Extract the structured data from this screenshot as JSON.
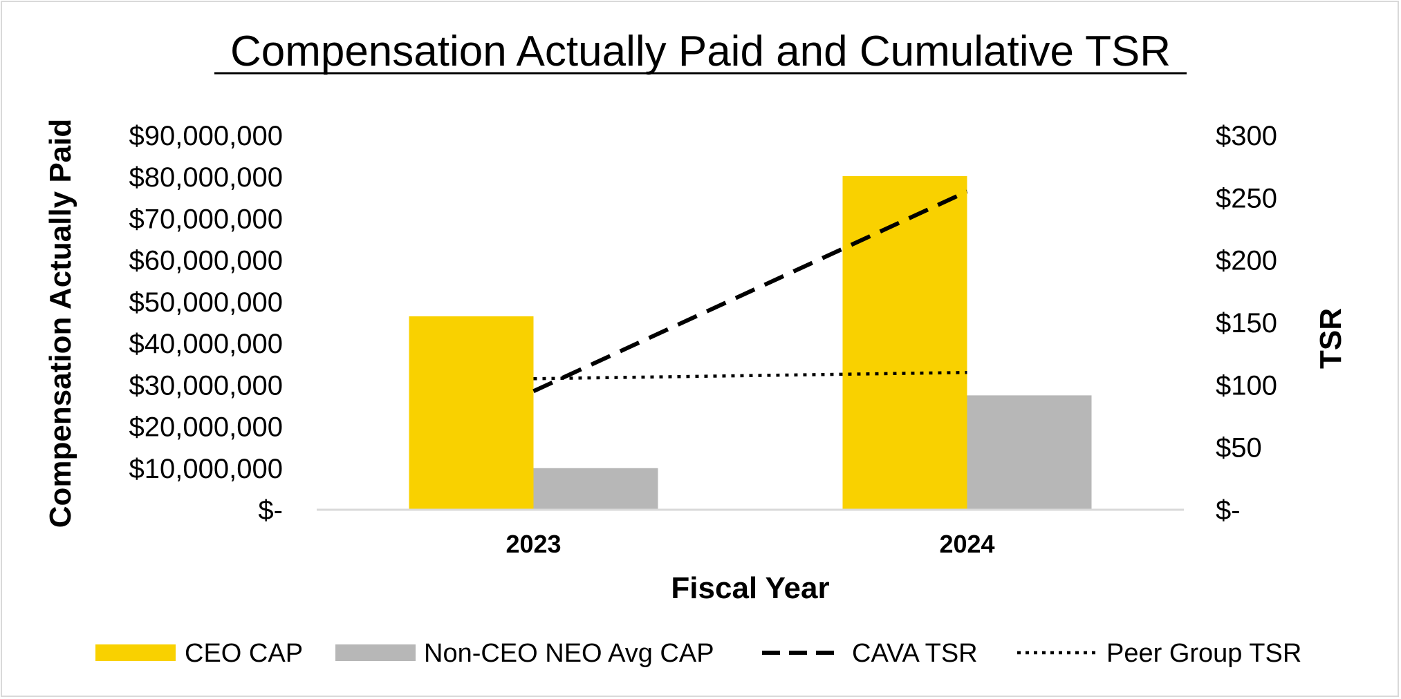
{
  "chart_data": {
    "type": "bar",
    "title": "Compensation Actually Paid and Cumulative TSR",
    "xlabel": "Fiscal Year",
    "ylabel": "Compensation Actually Paid",
    "y2label": "TSR",
    "categories": [
      "2023",
      "2024"
    ],
    "ylim": [
      0,
      90000000
    ],
    "y2lim": [
      0,
      300
    ],
    "y_ticks": [
      "$-",
      "$10,000,000",
      "$20,000,000",
      "$30,000,000",
      "$40,000,000",
      "$50,000,000",
      "$60,000,000",
      "$70,000,000",
      "$80,000,000",
      "$90,000,000"
    ],
    "y2_ticks": [
      "$-",
      "$50",
      "$100",
      "$150",
      "$200",
      "$250",
      "$300"
    ],
    "series": [
      {
        "name": "CEO CAP",
        "kind": "bar",
        "axis": "left",
        "color": "#F9D100",
        "values": [
          46500000,
          80200000
        ]
      },
      {
        "name": "Non-CEO NEO Avg CAP",
        "kind": "bar",
        "axis": "left",
        "color": "#B7B7B7",
        "values": [
          10000000,
          27500000
        ]
      },
      {
        "name": "CAVA TSR",
        "kind": "line",
        "style": "dashed",
        "axis": "right",
        "color": "#000000",
        "values": [
          95,
          255
        ]
      },
      {
        "name": "Peer Group TSR",
        "kind": "line",
        "style": "dotted",
        "axis": "right",
        "color": "#000000",
        "values": [
          105,
          110
        ]
      }
    ],
    "legend_position": "bottom"
  }
}
